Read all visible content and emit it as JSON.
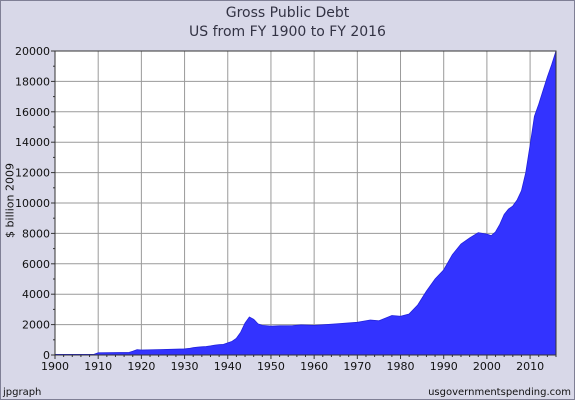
{
  "chart_data": {
    "type": "area",
    "title": "Gross Public Debt",
    "subtitle": "US from FY 1900 to FY 2016",
    "ylabel": "$ billion 2009",
    "xlabel": "",
    "xlim": [
      1900,
      2016
    ],
    "ylim": [
      0,
      20000
    ],
    "xticks": [
      "1900",
      "1910",
      "1920",
      "1930",
      "1940",
      "1950",
      "1960",
      "1970",
      "1980",
      "1990",
      "2000",
      "2010"
    ],
    "yticks": [
      "0",
      "2000",
      "4000",
      "6000",
      "8000",
      "10000",
      "12000",
      "14000",
      "16000",
      "18000",
      "20000"
    ],
    "grid": true,
    "series_color": "#3333ff",
    "x": [
      1900,
      1905,
      1909,
      1910,
      1915,
      1917,
      1918,
      1919,
      1920,
      1925,
      1929,
      1930,
      1931,
      1932,
      1933,
      1934,
      1935,
      1936,
      1937,
      1938,
      1939,
      1940,
      1941,
      1942,
      1943,
      1944,
      1945,
      1946,
      1947,
      1948,
      1950,
      1952,
      1955,
      1957,
      1960,
      1965,
      1970,
      1973,
      1975,
      1978,
      1980,
      1982,
      1984,
      1986,
      1988,
      1990,
      1992,
      1994,
      1996,
      1998,
      2000,
      2001,
      2002,
      2003,
      2004,
      2005,
      2006,
      2007,
      2008,
      2009,
      2010,
      2011,
      2012,
      2013,
      2014,
      2015,
      2016
    ],
    "values": [
      40,
      40,
      40,
      150,
      160,
      160,
      250,
      350,
      330,
      360,
      390,
      400,
      430,
      480,
      520,
      540,
      560,
      600,
      650,
      680,
      700,
      800,
      900,
      1100,
      1500,
      2100,
      2500,
      2350,
      2050,
      1950,
      1900,
      1920,
      1930,
      1980,
      1950,
      2050,
      2150,
      2300,
      2250,
      2600,
      2550,
      2700,
      3300,
      4200,
      5000,
      5600,
      6600,
      7300,
      7700,
      8050,
      7950,
      7850,
      8100,
      8600,
      9250,
      9600,
      9800,
      10200,
      10800,
      12000,
      13800,
      15700,
      16500,
      17400,
      18300,
      19100,
      20000
    ]
  },
  "footer": {
    "left": "jpgraph",
    "right": "usgovernmentspending.com"
  }
}
